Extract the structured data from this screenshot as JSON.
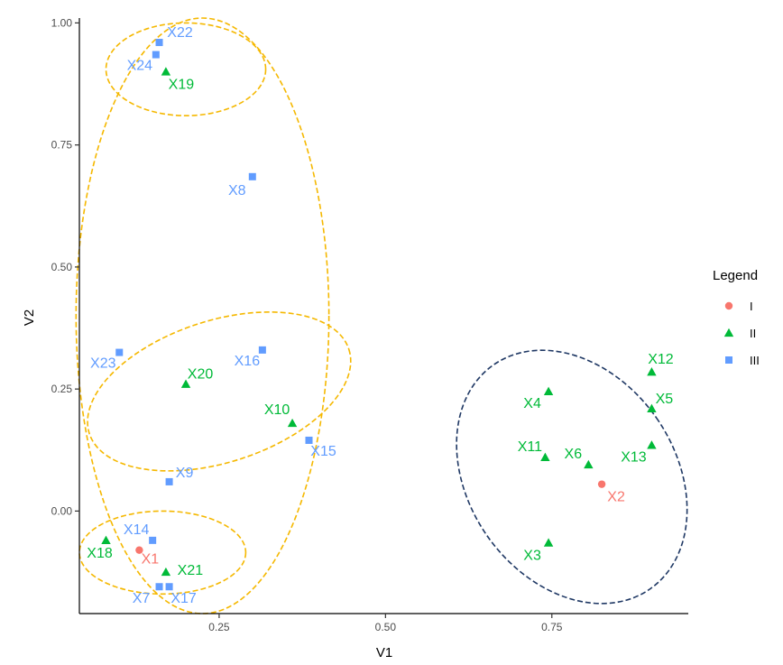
{
  "chart_data": {
    "type": "scatter",
    "xlabel": "V1",
    "ylabel": "V2",
    "xlim": [
      0.04,
      0.955
    ],
    "ylim": [
      -0.21,
      1.01
    ],
    "x_ticks": [
      0.25,
      0.5,
      0.75
    ],
    "x_tick_labels": [
      "0.25",
      "0.50",
      "0.75"
    ],
    "y_ticks": [
      0.0,
      0.25,
      0.5,
      0.75,
      1.0
    ],
    "y_tick_labels": [
      "0.00",
      "0.25",
      "0.50",
      "0.75",
      "1.00"
    ],
    "grid": false,
    "legend": {
      "title": "Legend",
      "position": "right",
      "entries": [
        {
          "label": "I",
          "shape": "circle",
          "color": "#F8766D"
        },
        {
          "label": "II",
          "shape": "triangle",
          "color": "#00BA38"
        },
        {
          "label": "III",
          "shape": "square",
          "color": "#619CFF"
        }
      ]
    },
    "series": [
      {
        "name": "I",
        "shape": "circle",
        "color": "#F8766D",
        "points": [
          {
            "label": "X1",
            "x": 0.13,
            "y": -0.08
          },
          {
            "label": "X2",
            "x": 0.825,
            "y": 0.055
          }
        ]
      },
      {
        "name": "II",
        "shape": "triangle",
        "color": "#00BA38",
        "points": [
          {
            "label": "X3",
            "x": 0.745,
            "y": -0.065
          },
          {
            "label": "X4",
            "x": 0.745,
            "y": 0.245
          },
          {
            "label": "X5",
            "x": 0.9,
            "y": 0.21
          },
          {
            "label": "X6",
            "x": 0.805,
            "y": 0.095
          },
          {
            "label": "X10",
            "x": 0.36,
            "y": 0.18
          },
          {
            "label": "X11",
            "x": 0.74,
            "y": 0.11
          },
          {
            "label": "X12",
            "x": 0.9,
            "y": 0.285
          },
          {
            "label": "X13",
            "x": 0.9,
            "y": 0.135
          },
          {
            "label": "X18",
            "x": 0.08,
            "y": -0.06
          },
          {
            "label": "X19",
            "x": 0.17,
            "y": 0.9
          },
          {
            "label": "X20",
            "x": 0.2,
            "y": 0.26
          },
          {
            "label": "X21",
            "x": 0.17,
            "y": -0.125
          }
        ]
      },
      {
        "name": "III",
        "shape": "square",
        "color": "#619CFF",
        "points": [
          {
            "label": "X7",
            "x": 0.16,
            "y": -0.155
          },
          {
            "label": "X8",
            "x": 0.3,
            "y": 0.685
          },
          {
            "label": "X9",
            "x": 0.175,
            "y": 0.06
          },
          {
            "label": "X14",
            "x": 0.15,
            "y": -0.06
          },
          {
            "label": "X15",
            "x": 0.385,
            "y": 0.145
          },
          {
            "label": "X16",
            "x": 0.315,
            "y": 0.33
          },
          {
            "label": "X17",
            "x": 0.175,
            "y": -0.155
          },
          {
            "label": "X22",
            "x": 0.16,
            "y": 0.96
          },
          {
            "label": "X23",
            "x": 0.1,
            "y": 0.325
          },
          {
            "label": "X24",
            "x": 0.155,
            "y": 0.935
          }
        ]
      }
    ],
    "annotations": [
      {
        "shape": "ellipse",
        "style": "dashed",
        "color": "#F5B800",
        "cx": 0.225,
        "cy": 0.4,
        "rx": 0.19,
        "ry": 0.61,
        "rotate": 0
      },
      {
        "shape": "ellipse",
        "style": "dashed",
        "color": "#F5B800",
        "cx": 0.2,
        "cy": 0.905,
        "rx": 0.12,
        "ry": 0.095,
        "rotate": 0
      },
      {
        "shape": "ellipse",
        "style": "dashed",
        "color": "#F5B800",
        "cx": 0.25,
        "cy": 0.245,
        "rx": 0.205,
        "ry": 0.145,
        "rotate": -18
      },
      {
        "shape": "ellipse",
        "style": "dashed",
        "color": "#F5B800",
        "cx": 0.165,
        "cy": -0.085,
        "rx": 0.125,
        "ry": 0.085,
        "rotate": 0
      },
      {
        "shape": "ellipse",
        "style": "dashed",
        "color": "#1F3864",
        "cx": 0.78,
        "cy": 0.07,
        "rx": 0.155,
        "ry": 0.28,
        "rotate": -35
      }
    ]
  }
}
